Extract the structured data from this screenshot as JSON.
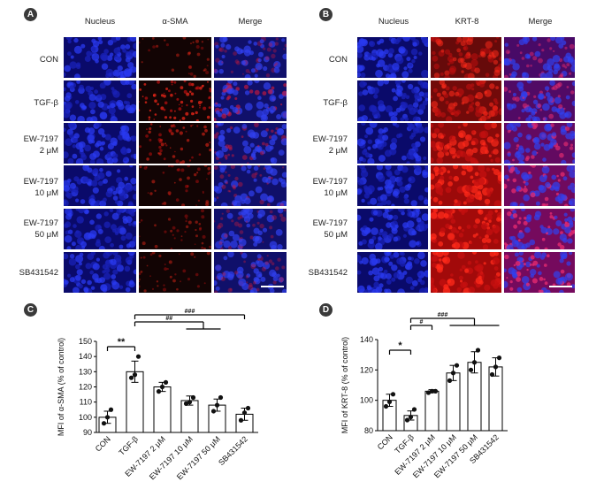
{
  "panels": [
    {
      "letter": "A",
      "columns": [
        "Nucleus",
        "α-SMA",
        "Merge"
      ],
      "rows": [
        "CON",
        "TGF-β",
        "EW-7197\n2 μM",
        "EW-7197\n10 μM",
        "EW-7197\n50 μM",
        "SB431542"
      ],
      "red_intensity": [
        0.08,
        0.55,
        0.3,
        0.18,
        0.12,
        0.12
      ]
    },
    {
      "letter": "B",
      "columns": [
        "Nucleus",
        "KRT-8",
        "Merge"
      ],
      "rows": [
        "CON",
        "TGF-β",
        "EW-7197\n2 μM",
        "EW-7197\n10 μM",
        "EW-7197\n50 μM",
        "SB431542"
      ],
      "red_intensity": [
        0.35,
        0.45,
        0.65,
        0.8,
        0.85,
        0.85
      ]
    }
  ],
  "colors": {
    "nucleus": "#1e2ad8",
    "marker": "#e01010",
    "badge": "#3a3a3a"
  },
  "chart_data": [
    {
      "letter": "C",
      "type": "bar",
      "ylabel": "MFI of α-SMA (% of control)",
      "ylim": [
        90,
        150
      ],
      "yticks": [
        90,
        100,
        110,
        120,
        130,
        140,
        150
      ],
      "categories": [
        "CON",
        "TGF-β",
        "EW-7197 2 μM",
        "EW-7197 10 μM",
        "EW-7197 50 μM",
        "SB431542"
      ],
      "values": [
        100,
        130,
        120,
        111,
        108,
        102
      ],
      "errors": [
        4,
        7,
        3,
        3,
        4,
        4
      ],
      "points": [
        [
          96,
          100,
          105
        ],
        [
          126,
          128,
          140
        ],
        [
          117,
          120,
          123
        ],
        [
          109,
          110,
          113
        ],
        [
          104,
          108,
          113
        ],
        [
          98,
          103,
          106
        ]
      ],
      "significance": [
        {
          "label": "**",
          "from": 0,
          "to": 1
        },
        {
          "label": "##",
          "from": 1,
          "to": [
            3,
            4
          ]
        },
        {
          "label": "###",
          "from": 1,
          "to": [
            5
          ]
        }
      ]
    },
    {
      "letter": "D",
      "type": "bar",
      "ylabel": "MFI of KRT-8 (% of control)",
      "ylim": [
        80,
        140
      ],
      "yticks": [
        80,
        100,
        120,
        140
      ],
      "categories": [
        "CON",
        "TGF-β",
        "EW-7197 2 μM",
        "EW-7197 10 μM",
        "EW-7197 50 μM",
        "SB431542"
      ],
      "values": [
        100,
        90,
        106,
        118,
        125,
        122
      ],
      "errors": [
        4,
        3,
        1,
        5,
        7,
        6
      ],
      "points": [
        [
          96,
          99,
          104
        ],
        [
          87,
          89,
          94
        ],
        [
          105,
          106,
          106
        ],
        [
          113,
          118,
          123
        ],
        [
          120,
          125,
          133
        ],
        [
          117,
          122,
          128
        ]
      ],
      "significance": [
        {
          "label": "*",
          "from": 0,
          "to": 1
        },
        {
          "label": "#",
          "from": 1,
          "to": 2
        },
        {
          "label": "###",
          "from": 1,
          "to": [
            3,
            4,
            5
          ]
        }
      ]
    }
  ]
}
